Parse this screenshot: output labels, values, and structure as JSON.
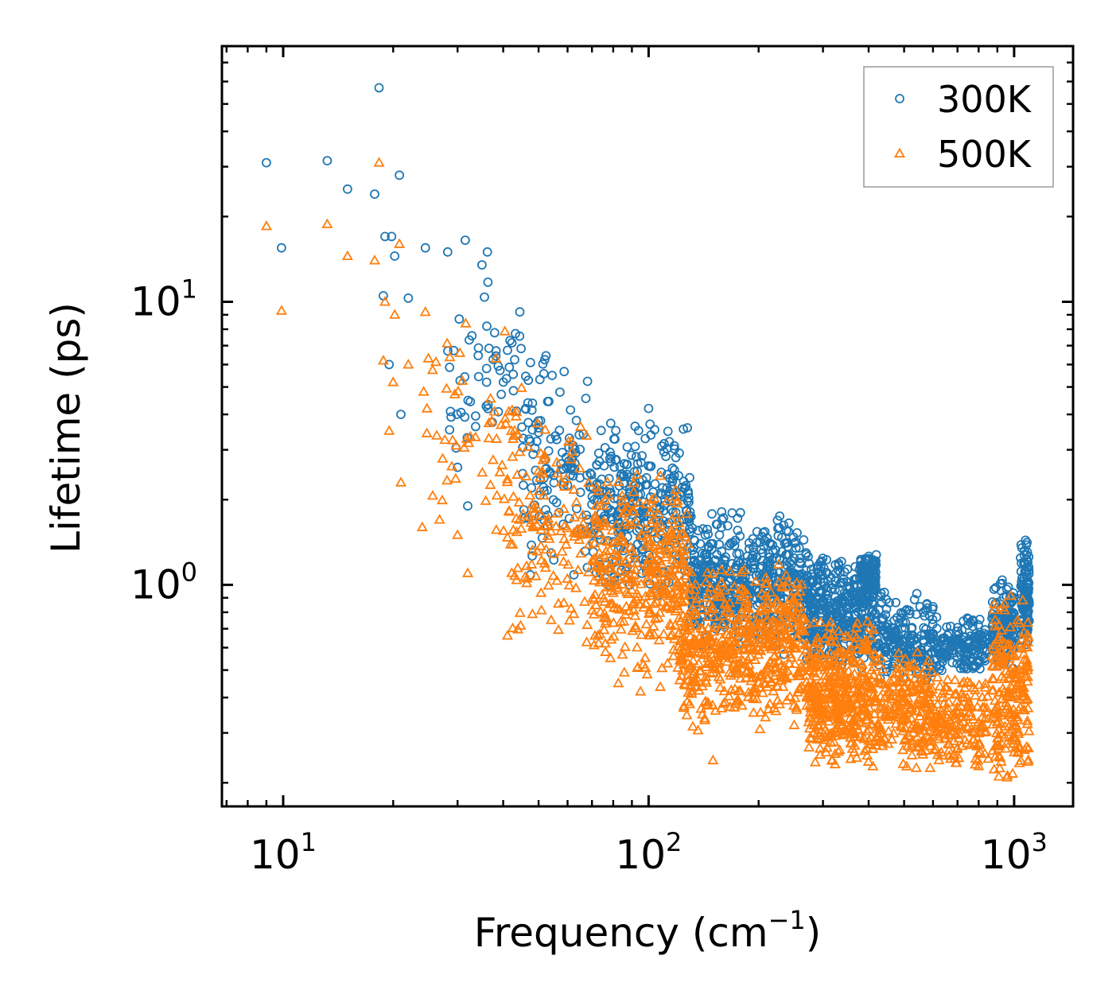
{
  "chart_data": {
    "type": "scatter",
    "xscale": "log",
    "yscale": "log",
    "xlabel": "Frequency (cm",
    "xlabel_sup": "−1",
    "xlabel_end": ")",
    "ylabel": "Lifetime (ps)",
    "xlim": [
      6.8,
      1450
    ],
    "ylim": [
      0.165,
      80
    ],
    "x_ticks": [
      {
        "value": 10,
        "base": "10",
        "exp": "1"
      },
      {
        "value": 100,
        "base": "10",
        "exp": "2"
      },
      {
        "value": 1000,
        "base": "10",
        "exp": "3"
      }
    ],
    "y_ticks": [
      {
        "value": 1,
        "base": "10",
        "exp": "0"
      },
      {
        "value": 10,
        "base": "10",
        "exp": "1"
      }
    ],
    "legend_position": "top-right",
    "series": [
      {
        "name": "300K",
        "marker": "circle",
        "color": "#1f77b4",
        "key_points": [
          {
            "x": 9.0,
            "y": 31.0
          },
          {
            "x": 13.2,
            "y": 31.5
          },
          {
            "x": 15.0,
            "y": 25.0
          },
          {
            "x": 17.8,
            "y": 24.0
          },
          {
            "x": 18.3,
            "y": 57.0
          },
          {
            "x": 20.8,
            "y": 28.0
          },
          {
            "x": 9.9,
            "y": 15.5
          },
          {
            "x": 19.0,
            "y": 17.0
          },
          {
            "x": 19.8,
            "y": 17.0
          },
          {
            "x": 20.2,
            "y": 14.5
          },
          {
            "x": 24.5,
            "y": 15.5
          },
          {
            "x": 28.2,
            "y": 15.0
          },
          {
            "x": 31.5,
            "y": 16.5
          },
          {
            "x": 35.0,
            "y": 13.5
          },
          {
            "x": 36.2,
            "y": 15.0
          },
          {
            "x": 18.8,
            "y": 10.5
          },
          {
            "x": 22.0,
            "y": 10.3
          },
          {
            "x": 19.5,
            "y": 6.0
          },
          {
            "x": 21.0,
            "y": 4.0
          },
          {
            "x": 30.0,
            "y": 2.6
          },
          {
            "x": 32.0,
            "y": 1.9
          },
          {
            "x": 100.0,
            "y": 4.2
          }
        ],
        "bands": [
          {
            "x_start": 28,
            "x_end": 45,
            "y_low": 2.5,
            "y_high": 12.0,
            "n": 55
          },
          {
            "x_start": 45,
            "x_end": 70,
            "y_low": 1.0,
            "y_high": 7.0,
            "n": 130
          },
          {
            "x_start": 70,
            "x_end": 130,
            "y_low": 0.85,
            "y_high": 4.0,
            "n": 320
          },
          {
            "x_start": 130,
            "x_end": 270,
            "y_low": 0.55,
            "y_high": 1.9,
            "n": 520
          },
          {
            "x_start": 270,
            "x_end": 420,
            "y_low": 0.5,
            "y_high": 1.3,
            "n": 420
          },
          {
            "x_start": 380,
            "x_end": 420,
            "y_low": 0.9,
            "y_high": 1.3,
            "n": 90
          },
          {
            "x_start": 420,
            "x_end": 600,
            "y_low": 0.42,
            "y_high": 0.95,
            "n": 200
          },
          {
            "x_start": 600,
            "x_end": 850,
            "y_low": 0.48,
            "y_high": 0.78,
            "n": 160
          },
          {
            "x_start": 870,
            "x_end": 1000,
            "y_low": 0.5,
            "y_high": 1.05,
            "n": 150
          },
          {
            "x_start": 1040,
            "x_end": 1100,
            "y_low": 0.55,
            "y_high": 1.55,
            "n": 120
          }
        ]
      },
      {
        "name": "500K",
        "marker": "triangle",
        "color": "#ff7f0e",
        "key_points": [
          {
            "x": 9.0,
            "y": 18.5
          },
          {
            "x": 13.2,
            "y": 18.8
          },
          {
            "x": 15.0,
            "y": 14.5
          },
          {
            "x": 17.8,
            "y": 14.0
          },
          {
            "x": 18.3,
            "y": 31.0
          },
          {
            "x": 20.8,
            "y": 16.0
          },
          {
            "x": 9.9,
            "y": 9.3
          },
          {
            "x": 19.0,
            "y": 10.0
          },
          {
            "x": 20.2,
            "y": 9.0
          },
          {
            "x": 18.8,
            "y": 6.2
          },
          {
            "x": 20.0,
            "y": 5.2
          },
          {
            "x": 22.0,
            "y": 6.0
          },
          {
            "x": 19.5,
            "y": 3.5
          },
          {
            "x": 21.0,
            "y": 2.3
          },
          {
            "x": 24.5,
            "y": 9.2
          },
          {
            "x": 30.0,
            "y": 1.5
          },
          {
            "x": 32.0,
            "y": 1.1
          },
          {
            "x": 95.0,
            "y": 0.42
          },
          {
            "x": 150.0,
            "y": 0.24
          }
        ],
        "bands": [
          {
            "x_start": 24,
            "x_end": 45,
            "y_low": 1.2,
            "y_high": 9.5,
            "n": 60
          },
          {
            "x_start": 40,
            "x_end": 70,
            "y_low": 0.6,
            "y_high": 4.0,
            "n": 140
          },
          {
            "x_start": 70,
            "x_end": 130,
            "y_low": 0.42,
            "y_high": 2.6,
            "n": 360
          },
          {
            "x_start": 120,
            "x_end": 270,
            "y_low": 0.3,
            "y_high": 1.2,
            "n": 560
          },
          {
            "x_start": 270,
            "x_end": 420,
            "y_low": 0.21,
            "y_high": 0.78,
            "n": 450
          },
          {
            "x_start": 420,
            "x_end": 600,
            "y_low": 0.22,
            "y_high": 0.6,
            "n": 220
          },
          {
            "x_start": 600,
            "x_end": 850,
            "y_low": 0.22,
            "y_high": 0.48,
            "n": 170
          },
          {
            "x_start": 870,
            "x_end": 1100,
            "y_low": 0.19,
            "y_high": 1.0,
            "n": 220
          }
        ]
      }
    ]
  }
}
